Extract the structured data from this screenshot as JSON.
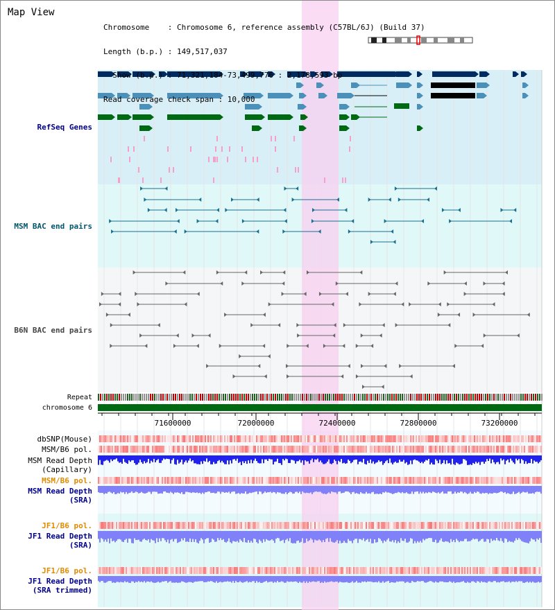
{
  "header": {
    "title": "Map View",
    "info_lines": [
      "Chromosome    : Chromosome 6, reference assembly (C57BL/6J) (Build 37)",
      "Length (b.p.) : 149,517,037",
      "  Show (b.p.) : 71,321,184-73,499,776 : 2,178,593 bp",
      "Read coverage check span : 10,000"
    ]
  },
  "tracks": {
    "refseq": "RefSeq Genes",
    "msm_bac": "MSM BAC end pairs",
    "b6n_bac": "B6N BAC end pairs",
    "repeat": "Repeat",
    "chromosome": "chromosome 6",
    "dbsnp": "dbSNP(Mouse)",
    "msm_b6_pol_1": "MSM/B6 pol.",
    "msm_read_depth_cap_1": "MSM Read Depth",
    "msm_read_depth_cap_2": "(Capillary)",
    "msm_b6_pol_2": "MSM/B6 pol.",
    "msm_read_depth_sra_1": "MSM Read Depth",
    "msm_read_depth_sra_2": "(SRA)",
    "jf1_b6_pol_1": "JF1/B6 pol.",
    "jf1_read_depth_sra_1": "JF1 Read Depth",
    "jf1_read_depth_sra_2": "(SRA)",
    "jf1_b6_pol_2": "JF1/B6 pol.",
    "jf1_read_depth_trim_1": "JF1 Read Depth",
    "jf1_read_depth_trim_2": "(SRA trimmed)"
  },
  "axis": {
    "ticks": [
      "71600000",
      "72000000",
      "72400000",
      "72800000",
      "73200000"
    ]
  },
  "colors": {
    "highlight": "#f8d0f0",
    "refseq_bg": "#d8eff8",
    "msm_bg": "#e0f8f8",
    "b6n_bg": "#f4f6f8",
    "gene_navy": "#002b60",
    "gene_steel": "#4a90b8",
    "gene_green": "#006a12",
    "bac_teal": "#1a6f90",
    "bac_gray": "#666666",
    "chrom_green": "#006a12",
    "depth_blue": "#2222ee",
    "depth_light": "#8080f8"
  }
}
